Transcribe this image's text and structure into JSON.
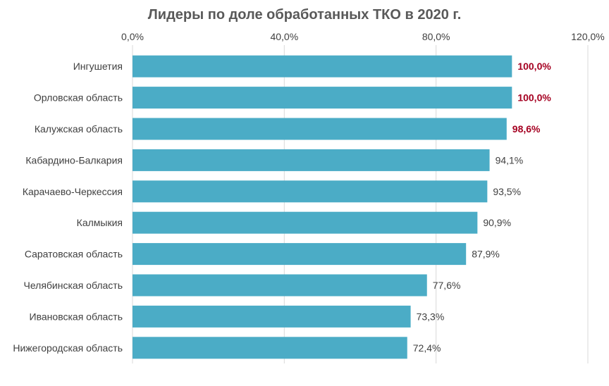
{
  "chart_data": {
    "type": "bar",
    "orientation": "horizontal",
    "title": "Лидеры по доле обработанных ТКО в 2020 г.",
    "xlabel": "",
    "ylabel": "",
    "xlim": [
      0,
      120
    ],
    "x_ticks": [
      0,
      40,
      80,
      120
    ],
    "x_tick_labels": [
      "0,0%",
      "40,0%",
      "80,0%",
      "120,0%"
    ],
    "x_axis_position": "top",
    "grid": true,
    "legend": "none",
    "categories": [
      "Ингушетия",
      "Орловская область",
      "Калужская область",
      "Кабардино-Балкария",
      "Карачаево-Черкессия",
      "Калмыкия",
      "Саратовская область",
      "Челябинская область",
      "Ивановская область",
      "Нижегородская область"
    ],
    "values": [
      100.0,
      100.0,
      98.6,
      94.1,
      93.5,
      90.9,
      87.9,
      77.6,
      73.3,
      72.4
    ],
    "data_labels": [
      "100,0%",
      "100,0%",
      "98,6%",
      "94,1%",
      "93,5%",
      "90,9%",
      "87,9%",
      "77,6%",
      "73,3%",
      "72,4%"
    ],
    "highlighted": [
      true,
      true,
      true,
      false,
      false,
      false,
      false,
      false,
      false,
      false
    ],
    "bar_color": "#4bacc6",
    "highlight_label_color": "#a50021",
    "label_color": "#404040"
  }
}
